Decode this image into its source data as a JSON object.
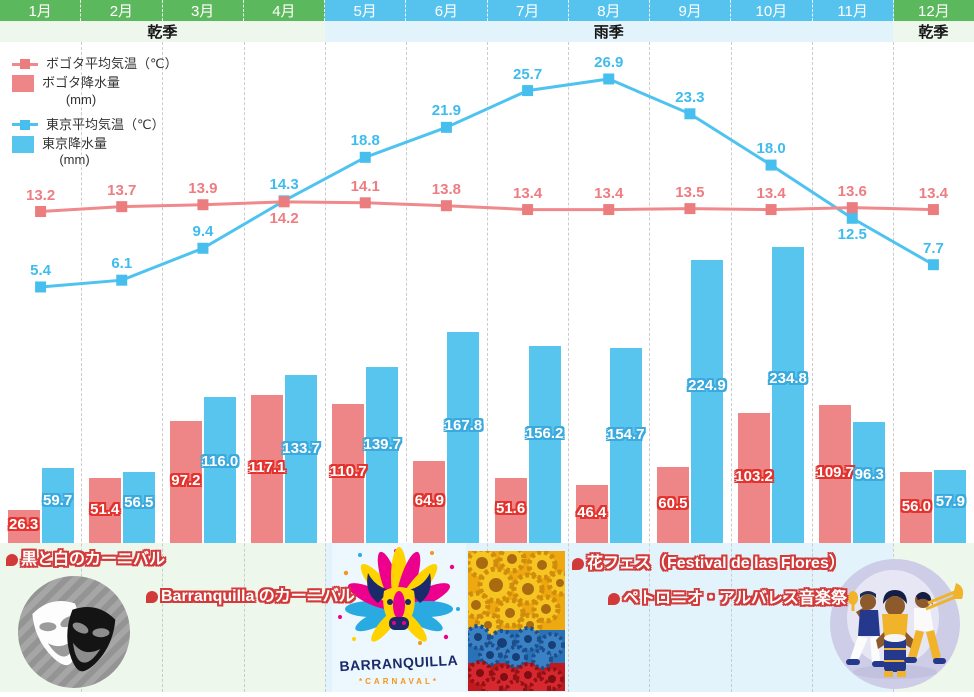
{
  "header": {
    "months": [
      "1月",
      "2月",
      "3月",
      "4月",
      "5月",
      "6月",
      "7月",
      "8月",
      "9月",
      "10月",
      "11月",
      "12月"
    ],
    "month_season": [
      "dry",
      "dry",
      "dry",
      "dry",
      "wet",
      "wet",
      "wet",
      "wet",
      "wet",
      "wet",
      "wet",
      "dry"
    ],
    "seasons": [
      {
        "label": "乾季",
        "span": 4,
        "type": "dry"
      },
      {
        "label": "雨季",
        "span": 7,
        "type": "wet"
      },
      {
        "label": "乾季",
        "span": 1,
        "type": "dry"
      }
    ]
  },
  "legend": [
    {
      "label": "ボゴタ平均気温（℃）"
    },
    {
      "label": "ボゴタ降水量",
      "sub": "(mm)"
    },
    {
      "label": "東京平均気温（℃）"
    },
    {
      "label": "東京降水量",
      "sub": "(mm)"
    }
  ],
  "chart_data": {
    "type": "combo",
    "categories": [
      "1月",
      "2月",
      "3月",
      "4月",
      "5月",
      "6月",
      "7月",
      "8月",
      "9月",
      "10月",
      "11月",
      "12月"
    ],
    "grid": "vertical-dashed",
    "series": [
      {
        "id": "tokyo_temp",
        "name": "東京平均気温（℃）",
        "type": "line",
        "unit": "℃",
        "color": "#4fc3f0",
        "marker_color": "#47bfee",
        "label_color": "#3fbcee",
        "values": [
          5.4,
          6.1,
          9.4,
          14.3,
          18.8,
          21.9,
          25.7,
          26.9,
          23.3,
          18.0,
          12.5,
          7.7
        ],
        "label_below_indices": [
          10
        ]
      },
      {
        "id": "bogota_temp",
        "name": "ボゴタ平均気温（℃）",
        "type": "line",
        "unit": "℃",
        "color": "#f0898b",
        "marker_color": "#eb7d7f",
        "label_color": "#ee7d81",
        "values": [
          13.2,
          13.7,
          13.9,
          14.2,
          14.1,
          13.8,
          13.4,
          13.4,
          13.5,
          13.4,
          13.6,
          13.4
        ],
        "label_below_indices": [
          3
        ]
      },
      {
        "id": "bogota_precip",
        "name": "ボゴタ降水量 (mm)",
        "type": "bar",
        "unit": "mm",
        "color": "#ee8687",
        "label_outline": "#e3322d",
        "values": [
          26.3,
          51.4,
          97.2,
          117.1,
          110.7,
          64.9,
          51.6,
          46.4,
          60.5,
          103.2,
          109.7,
          56.0
        ]
      },
      {
        "id": "tokyo_precip",
        "name": "東京降水量 (mm)",
        "type": "bar",
        "unit": "mm",
        "color": "#58c5ee",
        "label_outline": "#3aa9dd",
        "values": [
          59.7,
          56.5,
          116.0,
          133.7,
          139.7,
          167.8,
          156.2,
          154.7,
          224.9,
          234.8,
          96.3,
          57.9
        ]
      }
    ]
  },
  "festivals": [
    {
      "label": "黒と白のカーニバル"
    },
    {
      "label": "Barranquilla のカーニバル"
    },
    {
      "label": "花フェス（Festival de las Flores）"
    },
    {
      "label": "ペトロニオ・アルバレス音楽祭"
    }
  ],
  "footer": {
    "barranquilla": {
      "title": "BARRANQUILLA",
      "subtitle": "*CARNAVAL*"
    }
  },
  "colors": {
    "season_dry": "#5cb85c",
    "season_dry_light": "#eef7ec",
    "season_wet": "#55c3ee",
    "season_wet_light": "#e3f3fb",
    "bogota_pink": "#ee8687",
    "tokyo_blue": "#58c5ee",
    "festival_label_red": "#d23a3a"
  }
}
